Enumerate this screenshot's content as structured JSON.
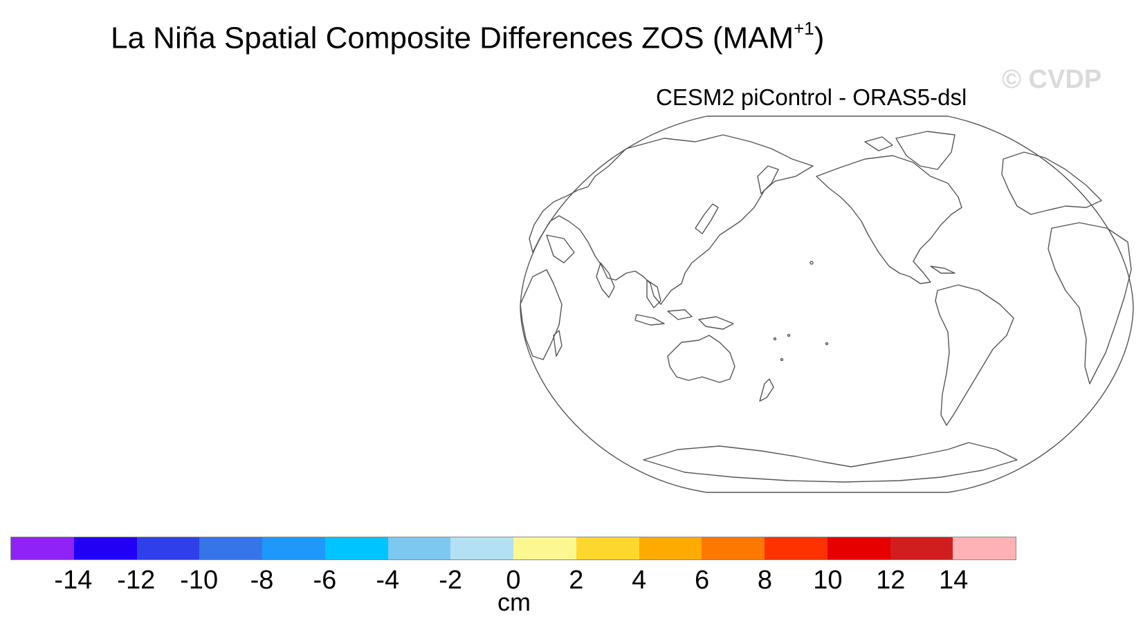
{
  "title": {
    "main": "La Niña Spatial Composite Differences ZOS (MAM",
    "superscript": "+1",
    "close": ")"
  },
  "watermark": "© CVDP",
  "subtitle": "CESM2 piControl - ORAS5-dsl",
  "map": {
    "projection": "robinson-like",
    "central_longitude": "Pacific-centered",
    "fill": "none",
    "coastline_color": "#555555"
  },
  "colorbar": {
    "units": "cm",
    "levels": [
      "-14",
      "-12",
      "-10",
      "-8",
      "-6",
      "-4",
      "-2",
      "0",
      "2",
      "4",
      "6",
      "8",
      "10",
      "12",
      "14"
    ],
    "colors": [
      "#8f23f5",
      "#2200f5",
      "#3040e8",
      "#3675e8",
      "#1e98fa",
      "#00c4ff",
      "#7cc8f0",
      "#b3e0f2",
      "#fdf791",
      "#fdd72e",
      "#fdab00",
      "#fd7800",
      "#fd3200",
      "#e60000",
      "#d01e1e",
      "#feb2b5"
    ]
  }
}
